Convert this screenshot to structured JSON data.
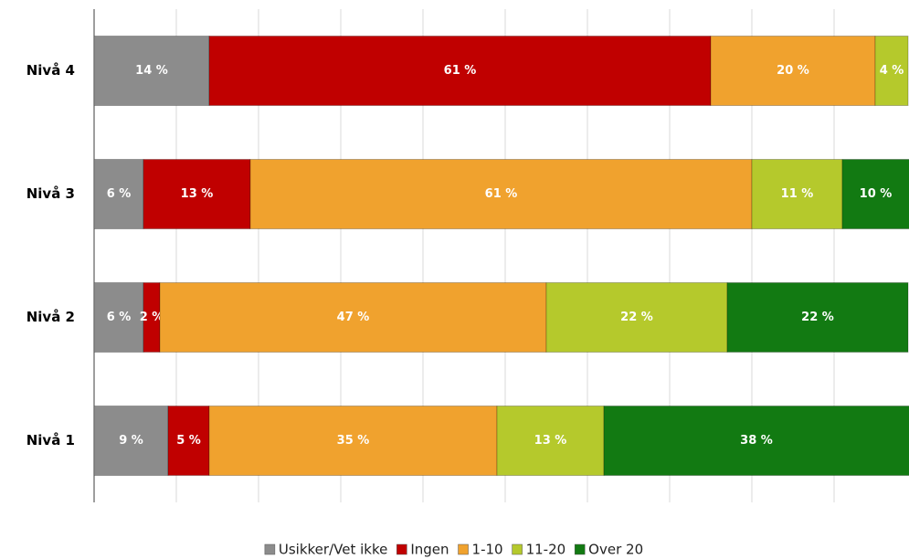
{
  "chart_data": {
    "type": "stacked-bar-horizontal",
    "categories": [
      "Nivå 4",
      "Nivå 3",
      "Nivå 2",
      "Nivå 1"
    ],
    "series": [
      {
        "name": "Usikker/Vet ikke",
        "color": "#8c8c8c",
        "values": [
          14,
          6,
          6,
          9
        ],
        "value_labels": [
          "14 %",
          "6 %",
          "6 %",
          "9 %"
        ]
      },
      {
        "name": "Ingen",
        "color": "#c00000",
        "values": [
          61,
          13,
          2,
          5
        ],
        "value_labels": [
          "61 %",
          "13 %",
          "2 %",
          "5 %"
        ]
      },
      {
        "name": "1-10",
        "color": "#f0a22e",
        "values": [
          20,
          61,
          47,
          35
        ],
        "value_labels": [
          "20 %",
          "61 %",
          "47 %",
          "35 %"
        ]
      },
      {
        "name": "11-20",
        "color": "#b5c92c",
        "values": [
          4,
          11,
          22,
          13
        ],
        "value_labels": [
          "4 %",
          "11 %",
          "22 %",
          "13 %"
        ]
      },
      {
        "name": "Over 20",
        "color": "#127a12",
        "values": [
          0,
          10,
          22,
          38
        ],
        "value_labels": [
          null,
          "10 %",
          "22 %",
          "38 %"
        ]
      }
    ],
    "xlim": [
      0,
      100
    ],
    "xticks": [
      0,
      10,
      20,
      30,
      40,
      50,
      60,
      70,
      80,
      90,
      100
    ],
    "grid": true,
    "legend": "bottom"
  }
}
